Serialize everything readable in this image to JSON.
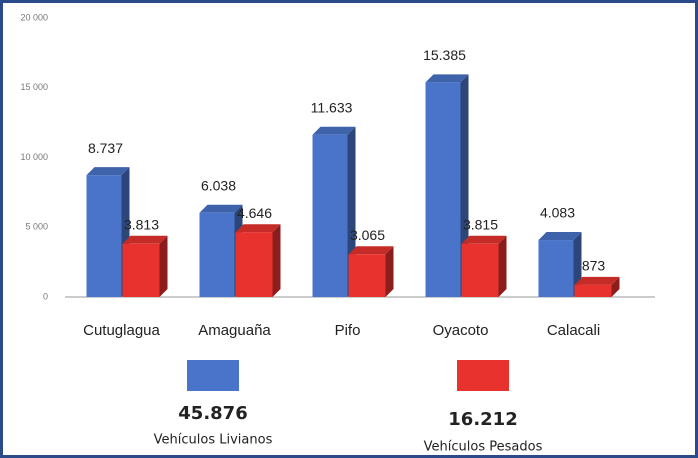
{
  "chart_data": {
    "type": "bar3d",
    "categories": [
      "Cutuglagua",
      "Amaguaña",
      "Pifo",
      "Oyacoto",
      "Calacali"
    ],
    "series": [
      {
        "name": "Vehículos Livianos",
        "color": "#4a74c9",
        "total_label": "45.876",
        "values": [
          8737,
          6038,
          11633,
          15385,
          4083
        ],
        "value_labels": [
          "8.737",
          "6.038",
          "11.633",
          "15.385",
          "4.083"
        ]
      },
      {
        "name": "Vehículos Pesados",
        "color": "#e8322e",
        "total_label": "16.212",
        "values": [
          3813,
          4646,
          3065,
          3815,
          873
        ],
        "value_labels": [
          "3.813",
          "4.646",
          "3.065",
          "3.815",
          "873"
        ]
      }
    ],
    "ylim": [
      0,
      20000
    ],
    "yticks": [
      {
        "value": 0,
        "label": "0"
      },
      {
        "value": 5000,
        "label": "5 000"
      },
      {
        "value": 10000,
        "label": "10 000"
      },
      {
        "value": 15000,
        "label": "15 000"
      },
      {
        "value": 20000,
        "label": "20 000"
      }
    ]
  }
}
